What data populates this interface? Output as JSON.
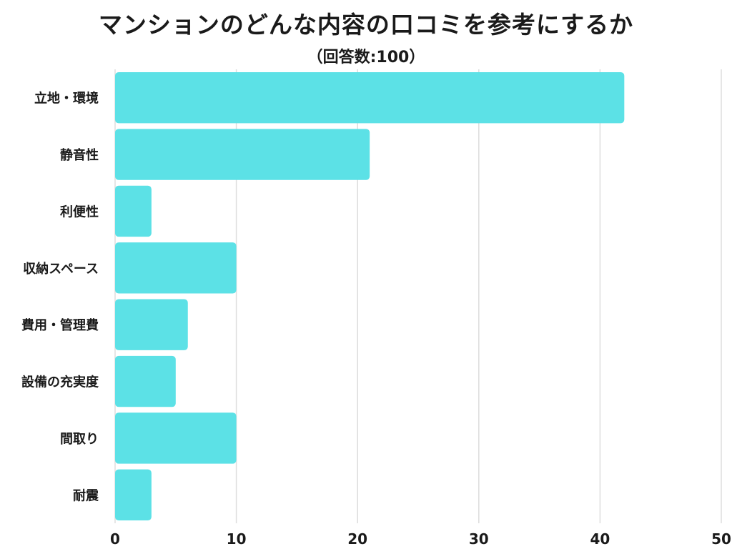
{
  "chart_data": {
    "type": "bar",
    "orientation": "horizontal",
    "title": "マンションのどんな内容の口コミを参考にするか",
    "subtitle": "（回答数:100）",
    "categories": [
      "立地・環境",
      "静音性",
      "利便性",
      "収納スペース",
      "費用・管理費",
      "設備の充実度",
      "間取り",
      "耐震"
    ],
    "values": [
      42,
      21,
      3,
      10,
      6,
      5,
      10,
      3
    ],
    "xlim": [
      0,
      50
    ],
    "xticks": [
      0,
      10,
      20,
      30,
      40,
      50
    ],
    "grid": true,
    "bar_color": "#5ce1e6"
  }
}
